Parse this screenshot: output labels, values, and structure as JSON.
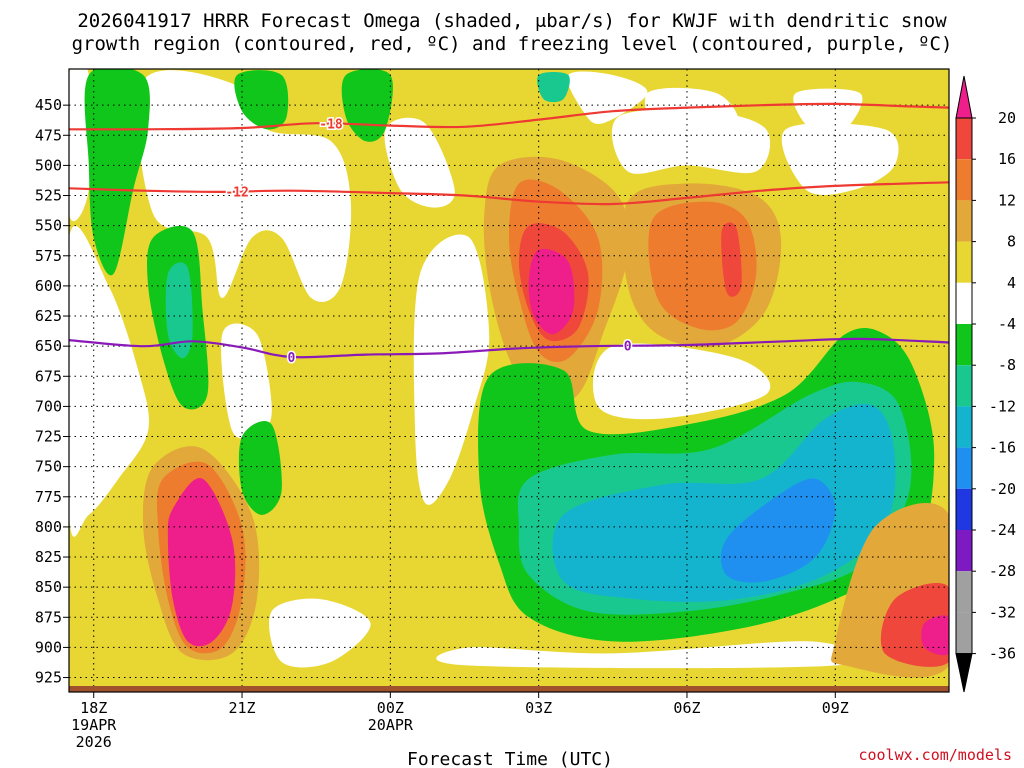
{
  "chart_data": {
    "type": "heatmap",
    "title_line1": "2026041917 HRRR Forecast Omega (shaded, μbar/s) for KWJF with dendritic snow",
    "title_line2": "growth region (contoured, red, ºC) and freezing level (contoured, purple, ºC)",
    "xlabel": "Forecast Time (UTC)",
    "x_ticks": [
      {
        "hours": 1,
        "lines": [
          "18Z",
          "19APR",
          "2026"
        ]
      },
      {
        "hours": 4,
        "lines": [
          "21Z"
        ]
      },
      {
        "hours": 7,
        "lines": [
          "00Z",
          "20APR"
        ]
      },
      {
        "hours": 10,
        "lines": [
          "03Z"
        ]
      },
      {
        "hours": 13,
        "lines": [
          "06Z"
        ]
      },
      {
        "hours": 16,
        "lines": [
          "09Z"
        ]
      }
    ],
    "x_range_hours": [
      0.5,
      18.3
    ],
    "y_ticks": [
      450,
      475,
      500,
      525,
      550,
      575,
      600,
      625,
      650,
      675,
      700,
      725,
      750,
      775,
      800,
      825,
      850,
      875,
      900,
      925
    ],
    "y_range_hpa": [
      420,
      937
    ],
    "colorbar": {
      "labels": [
        "20",
        "16",
        "12",
        "8",
        "4",
        "-4",
        "-8",
        "-12",
        "-16",
        "-20",
        "-24",
        "-28",
        "-32",
        "-36"
      ],
      "colors": [
        "#ee1f8a",
        "#f0473c",
        "#ee7c2f",
        "#e2a93a",
        "#e8d733",
        "#ffffff",
        "#11c61a",
        "#19c88f",
        "#14b4cf",
        "#1f8ff0",
        "#2038e2",
        "#7e1ac4",
        "#a0a0a0",
        "#000000"
      ]
    },
    "contours": [
      {
        "label": "-18",
        "color": "#ee3a33",
        "points": [
          [
            0.5,
            470
          ],
          [
            2,
            470
          ],
          [
            4,
            469
          ],
          [
            5.5,
            465
          ],
          [
            7,
            467
          ],
          [
            8.5,
            468
          ],
          [
            10,
            462
          ],
          [
            11.5,
            455
          ],
          [
            13,
            452
          ],
          [
            14.5,
            450
          ],
          [
            16,
            449
          ],
          [
            17.5,
            451
          ],
          [
            18.3,
            452
          ]
        ]
      },
      {
        "label": "-12",
        "color": "#ee3a33",
        "points": [
          [
            0.5,
            519
          ],
          [
            2,
            521
          ],
          [
            3.5,
            522
          ],
          [
            5,
            521
          ],
          [
            7,
            523
          ],
          [
            8.5,
            525
          ],
          [
            10,
            530
          ],
          [
            11.5,
            532
          ],
          [
            13,
            527
          ],
          [
            14.5,
            521
          ],
          [
            16,
            517
          ],
          [
            18.3,
            514
          ]
        ]
      },
      {
        "label": "0",
        "color": "#8a1ab8",
        "points": [
          [
            0.5,
            645
          ],
          [
            2,
            650
          ],
          [
            3,
            646
          ],
          [
            4,
            651
          ],
          [
            5,
            659
          ],
          [
            6.5,
            657
          ],
          [
            8,
            656
          ],
          [
            9.5,
            652
          ],
          [
            11,
            650
          ],
          [
            13,
            649
          ],
          [
            15,
            646
          ],
          [
            16.5,
            644
          ],
          [
            18.3,
            647
          ]
        ]
      }
    ],
    "omega_regions": [
      {
        "value": 8,
        "points": [
          [
            9.2,
            500
          ],
          [
            10.4,
            495
          ],
          [
            11.6,
            525
          ],
          [
            11.8,
            575
          ],
          [
            11.3,
            640
          ],
          [
            10.8,
            690
          ],
          [
            10.0,
            700
          ],
          [
            9.4,
            660
          ],
          [
            9.0,
            600
          ],
          [
            8.9,
            540
          ]
        ]
      },
      {
        "value": 12,
        "points": [
          [
            9.6,
            515
          ],
          [
            10.4,
            520
          ],
          [
            11.2,
            560
          ],
          [
            11.2,
            620
          ],
          [
            10.6,
            660
          ],
          [
            10.0,
            655
          ],
          [
            9.6,
            610
          ],
          [
            9.4,
            560
          ]
        ]
      },
      {
        "value": 16,
        "points": [
          [
            9.8,
            550
          ],
          [
            10.5,
            555
          ],
          [
            11.0,
            590
          ],
          [
            10.8,
            635
          ],
          [
            10.2,
            645
          ],
          [
            9.8,
            620
          ],
          [
            9.6,
            580
          ]
        ]
      },
      {
        "value": 20,
        "points": [
          [
            10.0,
            570
          ],
          [
            10.6,
            580
          ],
          [
            10.7,
            620
          ],
          [
            10.3,
            640
          ],
          [
            9.9,
            625
          ],
          [
            9.8,
            595
          ]
        ]
      },
      {
        "value": 8,
        "points": [
          [
            11.8,
            530
          ],
          [
            13.0,
            515
          ],
          [
            14.4,
            525
          ],
          [
            14.9,
            560
          ],
          [
            14.6,
            620
          ],
          [
            13.6,
            650
          ],
          [
            12.4,
            640
          ],
          [
            11.8,
            600
          ]
        ]
      },
      {
        "value": 12,
        "points": [
          [
            12.3,
            545
          ],
          [
            13.4,
            530
          ],
          [
            14.2,
            545
          ],
          [
            14.4,
            590
          ],
          [
            14.0,
            630
          ],
          [
            13.2,
            635
          ],
          [
            12.4,
            610
          ]
        ]
      },
      {
        "value": 16,
        "points": [
          [
            13.7,
            555
          ],
          [
            14.0,
            552
          ],
          [
            14.1,
            600
          ],
          [
            13.8,
            605
          ]
        ]
      },
      {
        "value": 8,
        "points": [
          [
            2.2,
            750
          ],
          [
            3.2,
            735
          ],
          [
            4.2,
            790
          ],
          [
            4.3,
            860
          ],
          [
            3.8,
            905
          ],
          [
            2.8,
            905
          ],
          [
            2.3,
            860
          ],
          [
            2.0,
            800
          ]
        ]
      },
      {
        "value": 12,
        "points": [
          [
            2.4,
            760
          ],
          [
            3.3,
            748
          ],
          [
            4.0,
            800
          ],
          [
            4.0,
            860
          ],
          [
            3.6,
            900
          ],
          [
            2.9,
            900
          ],
          [
            2.5,
            860
          ],
          [
            2.3,
            800
          ]
        ]
      },
      {
        "value": 20,
        "points": [
          [
            2.6,
            785
          ],
          [
            3.2,
            760
          ],
          [
            3.8,
            810
          ],
          [
            3.8,
            865
          ],
          [
            3.4,
            895
          ],
          [
            2.9,
            895
          ],
          [
            2.6,
            860
          ],
          [
            2.5,
            810
          ]
        ]
      },
      {
        "value": -8,
        "points": [
          [
            9.0,
            675
          ],
          [
            10.5,
            670
          ],
          [
            11.0,
            720
          ],
          [
            13.0,
            715
          ],
          [
            15.0,
            690
          ],
          [
            16.2,
            640
          ],
          [
            17.0,
            640
          ],
          [
            17.6,
            670
          ],
          [
            18.0,
            740
          ],
          [
            17.6,
            820
          ],
          [
            16.0,
            860
          ],
          [
            14.0,
            885
          ],
          [
            11.5,
            895
          ],
          [
            9.8,
            875
          ],
          [
            9.2,
            830
          ],
          [
            8.8,
            760
          ]
        ]
      },
      {
        "value": -12,
        "points": [
          [
            9.8,
            760
          ],
          [
            11.5,
            740
          ],
          [
            13.5,
            735
          ],
          [
            15.5,
            690
          ],
          [
            16.5,
            680
          ],
          [
            17.3,
            700
          ],
          [
            17.5,
            770
          ],
          [
            16.6,
            830
          ],
          [
            15.0,
            855
          ],
          [
            13.0,
            870
          ],
          [
            11.0,
            870
          ],
          [
            9.8,
            840
          ],
          [
            9.6,
            800
          ]
        ]
      },
      {
        "value": -16,
        "points": [
          [
            10.5,
            790
          ],
          [
            12.5,
            765
          ],
          [
            14.5,
            760
          ],
          [
            15.8,
            710
          ],
          [
            16.8,
            700
          ],
          [
            17.2,
            740
          ],
          [
            17.0,
            800
          ],
          [
            15.8,
            840
          ],
          [
            14.0,
            860
          ],
          [
            12.0,
            860
          ],
          [
            10.5,
            845
          ]
        ]
      },
      {
        "value": -20,
        "points": [
          [
            13.8,
            810
          ],
          [
            14.8,
            775
          ],
          [
            15.6,
            760
          ],
          [
            16.0,
            785
          ],
          [
            15.6,
            825
          ],
          [
            14.6,
            845
          ],
          [
            13.8,
            840
          ]
        ]
      },
      {
        "value": -8,
        "points": [
          [
            2.2,
            560
          ],
          [
            3.0,
            555
          ],
          [
            3.2,
            620
          ],
          [
            3.3,
            690
          ],
          [
            2.8,
            700
          ],
          [
            2.4,
            660
          ],
          [
            2.1,
            600
          ]
        ]
      },
      {
        "value": -12,
        "points": [
          [
            2.5,
            590
          ],
          [
            2.9,
            585
          ],
          [
            3.0,
            640
          ],
          [
            2.8,
            660
          ],
          [
            2.5,
            640
          ]
        ]
      },
      {
        "value": -8,
        "points": [
          [
            4.0,
            725
          ],
          [
            4.6,
            715
          ],
          [
            4.8,
            770
          ],
          [
            4.4,
            790
          ],
          [
            4.0,
            770
          ]
        ]
      },
      {
        "value": -8,
        "points": [
          [
            0.9,
            425
          ],
          [
            2.0,
            425
          ],
          [
            2.1,
            470
          ],
          [
            1.8,
            520
          ],
          [
            1.4,
            590
          ],
          [
            1.0,
            560
          ],
          [
            0.9,
            500
          ]
        ]
      },
      {
        "value": -8,
        "points": [
          [
            3.9,
            425
          ],
          [
            4.8,
            425
          ],
          [
            4.9,
            460
          ],
          [
            4.5,
            470
          ],
          [
            4.0,
            455
          ]
        ]
      },
      {
        "value": -8,
        "points": [
          [
            6.1,
            425
          ],
          [
            7.0,
            425
          ],
          [
            6.9,
            470
          ],
          [
            6.5,
            480
          ],
          [
            6.1,
            460
          ]
        ]
      },
      {
        "value": -12,
        "points": [
          [
            10.0,
            425
          ],
          [
            10.6,
            425
          ],
          [
            10.5,
            445
          ],
          [
            10.1,
            445
          ]
        ]
      },
      {
        "value": 8,
        "points": [
          [
            16.8,
            800
          ],
          [
            18.3,
            790
          ],
          [
            18.3,
            915
          ],
          [
            16.2,
            915
          ],
          [
            16.0,
            895
          ]
        ]
      },
      {
        "value": 16,
        "points": [
          [
            17.2,
            860
          ],
          [
            18.3,
            850
          ],
          [
            18.3,
            912
          ],
          [
            17.0,
            905
          ]
        ]
      },
      {
        "value": 20,
        "points": [
          [
            17.8,
            880
          ],
          [
            18.3,
            875
          ],
          [
            18.3,
            905
          ],
          [
            17.8,
            900
          ]
        ]
      }
    ],
    "watermark": "coolwx.com/models"
  }
}
